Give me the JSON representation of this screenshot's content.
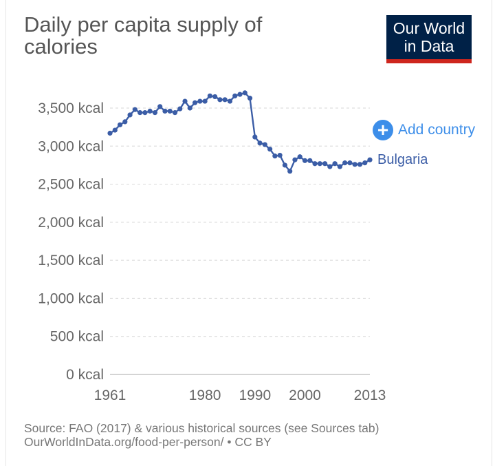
{
  "header": {
    "title": "Daily per capita supply of calories",
    "logo_line1": "Our World",
    "logo_line2": "in Data"
  },
  "controls": {
    "add_country_label": "Add country",
    "add_icon": "plus-circle-icon"
  },
  "footer": {
    "source": "Source: FAO (2017) & various historical sources (see Sources tab)",
    "url_license": "OurWorldInData.org/food-per-person/ • CC BY"
  },
  "colors": {
    "series": "#3b5da6",
    "grid": "#dddddd",
    "axis_text": "#666666",
    "accent": "#3d8ee9",
    "logo_bg": "#002147",
    "logo_bar": "#ce261e"
  },
  "chart_data": {
    "type": "line",
    "title": "Daily per capita supply of calories",
    "xlabel": "",
    "ylabel": "",
    "xlim": [
      1961,
      2013
    ],
    "ylim": [
      0,
      3500
    ],
    "grid": true,
    "y_ticks": [
      0,
      500,
      1000,
      1500,
      2000,
      2500,
      3000,
      3500
    ],
    "y_tick_labels": [
      "0 kcal",
      "500 kcal",
      "1,000 kcal",
      "1,500 kcal",
      "2,000 kcal",
      "2,500 kcal",
      "3,000 kcal",
      "3,500 kcal"
    ],
    "x_ticks": [
      1961,
      1980,
      1990,
      2000,
      2013
    ],
    "x_tick_labels": [
      "1961",
      "1980",
      "1990",
      "2000",
      "2013"
    ],
    "series": [
      {
        "name": "Bulgaria",
        "x": [
          1961,
          1962,
          1963,
          1964,
          1965,
          1966,
          1967,
          1968,
          1969,
          1970,
          1971,
          1972,
          1973,
          1974,
          1975,
          1976,
          1977,
          1978,
          1979,
          1980,
          1981,
          1982,
          1983,
          1984,
          1985,
          1986,
          1987,
          1988,
          1989,
          1990,
          1991,
          1992,
          1993,
          1994,
          1995,
          1996,
          1997,
          1998,
          1999,
          2000,
          2001,
          2002,
          2003,
          2004,
          2005,
          2006,
          2007,
          2008,
          2009,
          2010,
          2011,
          2012,
          2013
        ],
        "y": [
          3170,
          3210,
          3280,
          3320,
          3410,
          3480,
          3440,
          3440,
          3460,
          3440,
          3520,
          3460,
          3460,
          3440,
          3490,
          3590,
          3500,
          3570,
          3590,
          3590,
          3660,
          3650,
          3610,
          3610,
          3590,
          3660,
          3680,
          3700,
          3630,
          3120,
          3040,
          3020,
          2960,
          2870,
          2880,
          2750,
          2670,
          2820,
          2860,
          2810,
          2810,
          2770,
          2770,
          2770,
          2730,
          2770,
          2730,
          2780,
          2780,
          2760,
          2760,
          2780,
          2820
        ]
      }
    ]
  }
}
